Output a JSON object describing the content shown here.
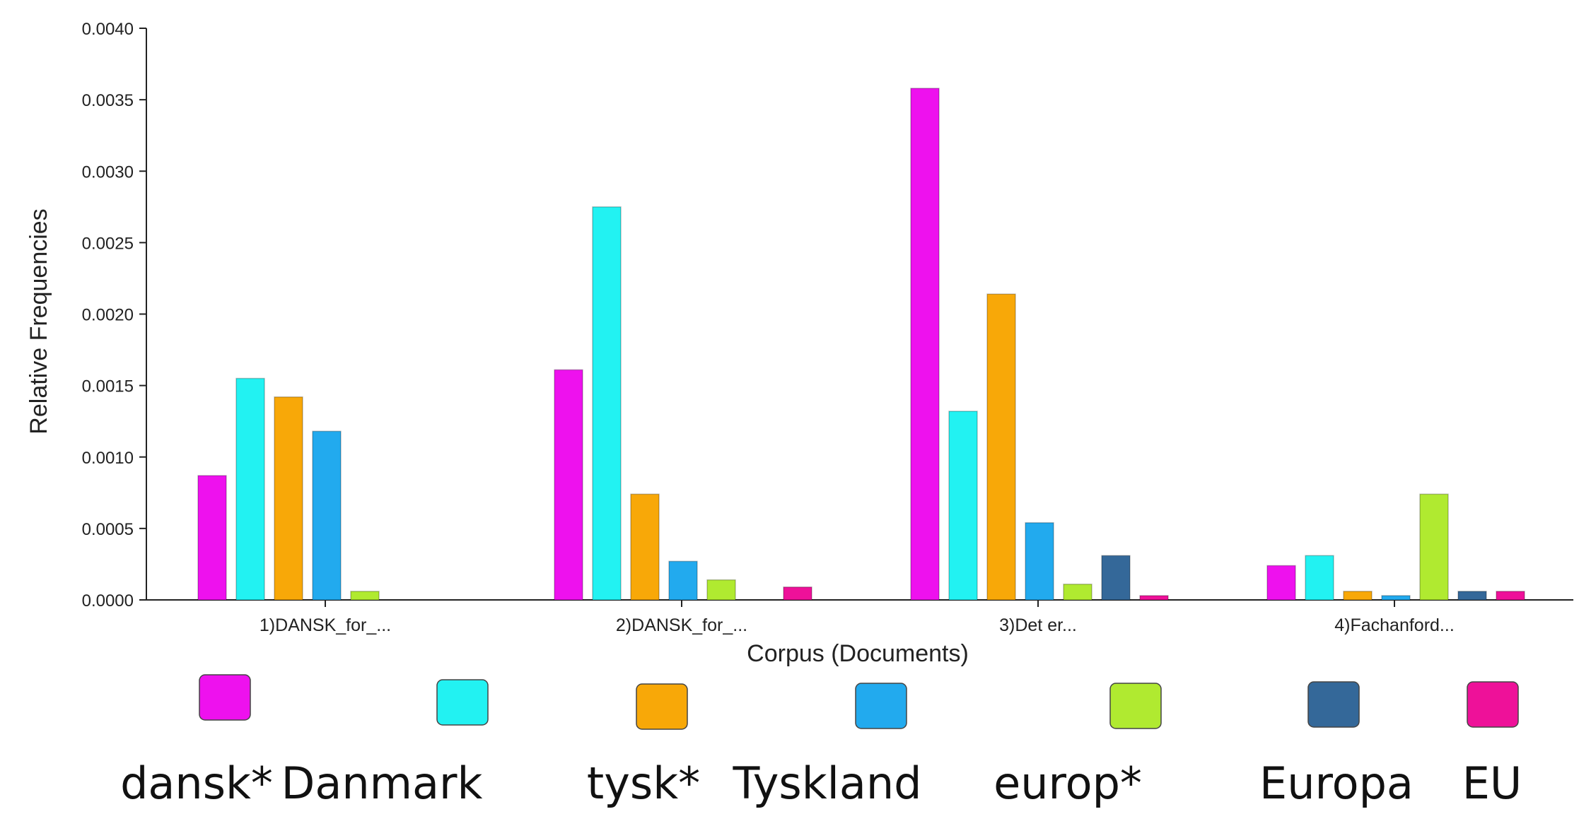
{
  "chart_data": {
    "type": "bar",
    "xlabel": "Corpus (Documents)",
    "ylabel": "Relative Frequencies",
    "ylim": [
      0,
      0.004
    ],
    "yticks": [
      "0.0000",
      "0.0005",
      "0.0010",
      "0.0015",
      "0.0020",
      "0.0025",
      "0.0030",
      "0.0035",
      "0.0040"
    ],
    "categories": [
      "1)DANSK_for_...",
      "2)DANSK_for_...",
      "3)Det er...",
      "4)Fachanford..."
    ],
    "grid": false,
    "legend_position": "bottom",
    "series": [
      {
        "name": "dansk*",
        "color": "#ee11ee",
        "values": [
          0.00087,
          0.00161,
          0.00358,
          0.00024
        ]
      },
      {
        "name": "Danmark",
        "color": "#22f2f2",
        "values": [
          0.00155,
          0.00275,
          0.00132,
          0.00031
        ]
      },
      {
        "name": "tysk*",
        "color": "#f8a808",
        "values": [
          0.00142,
          0.00074,
          0.00214,
          6e-05
        ]
      },
      {
        "name": "Tyskland",
        "color": "#22aaee",
        "values": [
          0.00118,
          0.00027,
          0.00054,
          3e-05
        ]
      },
      {
        "name": "europ*",
        "color": "#b0ea30",
        "values": [
          6e-05,
          0.00014,
          0.00011,
          0.00074
        ]
      },
      {
        "name": "Europa",
        "color": "#346899",
        "values": [
          0.0,
          0.0,
          0.00031,
          6e-05
        ]
      },
      {
        "name": "EU",
        "color": "#ee1199",
        "values": [
          0.0,
          9e-05,
          3e-05,
          6e-05
        ]
      }
    ]
  }
}
